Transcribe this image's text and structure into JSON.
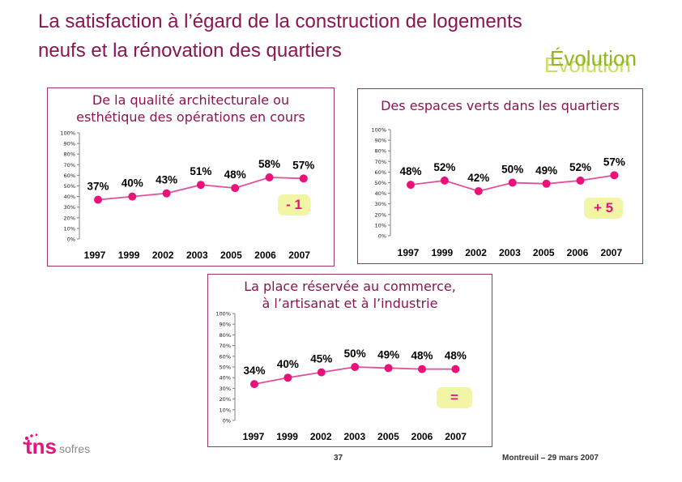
{
  "slide": {
    "title_line1": "La satisfaction à l’égard de la construction de logements",
    "title_line2": "neufs et la rénovation des quartiers",
    "tag": "Évolution",
    "page_number": "37",
    "footer": "Montreuil – 29 mars 2007",
    "logo_main": "tns",
    "logo_sub": "sofres"
  },
  "colors": {
    "title": "#8a1550",
    "series": "#e8127a",
    "line": "#e04f9a",
    "panel_border": "#a0336a",
    "badge_bg": "#f2f5a6",
    "badge_minus": "#e8127a",
    "badge_equal": "#e8127a",
    "evolution": "#8fb81f"
  },
  "chart_data": [
    {
      "type": "line",
      "title_lines": [
        "De la qualité architecturale ou",
        "esthétique des opérations en cours"
      ],
      "categories": [
        "1997",
        "1999",
        "2002",
        "2003",
        "2005",
        "2006",
        "2007"
      ],
      "values": [
        37,
        40,
        43,
        51,
        48,
        58,
        57
      ],
      "value_labels": [
        "37%",
        "40%",
        "43%",
        "51%",
        "48%",
        "58%",
        "57%"
      ],
      "y_ticks": [
        "0%",
        "10%",
        "20%",
        "30%",
        "40%",
        "50%",
        "60%",
        "70%",
        "80%",
        "90%",
        "100%"
      ],
      "ylim": [
        0,
        100
      ],
      "grid": false,
      "badge": "- 1"
    },
    {
      "type": "line",
      "title_lines": [
        "Des espaces verts dans les quartiers"
      ],
      "categories": [
        "1997",
        "1999",
        "2002",
        "2003",
        "2005",
        "2006",
        "2007"
      ],
      "values": [
        48,
        52,
        42,
        50,
        49,
        52,
        57
      ],
      "value_labels": [
        "48%",
        "52%",
        "42%",
        "50%",
        "49%",
        "52%",
        "57%"
      ],
      "y_ticks": [
        "0%",
        "10%",
        "20%",
        "30%",
        "40%",
        "50%",
        "60%",
        "70%",
        "80%",
        "90%",
        "100%"
      ],
      "ylim": [
        0,
        100
      ],
      "grid": false,
      "badge": "+ 5"
    },
    {
      "type": "line",
      "title_lines": [
        "La place réservée au commerce,",
        "à l’artisanat et à l’industrie"
      ],
      "categories": [
        "1997",
        "1999",
        "2002",
        "2003",
        "2005",
        "2006",
        "2007"
      ],
      "values": [
        34,
        40,
        45,
        50,
        49,
        48,
        48
      ],
      "value_labels": [
        "34%",
        "40%",
        "45%",
        "50%",
        "49%",
        "48%",
        "48%"
      ],
      "y_ticks": [
        "0%",
        "10%",
        "20%",
        "30%",
        "40%",
        "50%",
        "60%",
        "70%",
        "80%",
        "90%",
        "100%"
      ],
      "ylim": [
        0,
        100
      ],
      "grid": false,
      "badge": "="
    }
  ]
}
